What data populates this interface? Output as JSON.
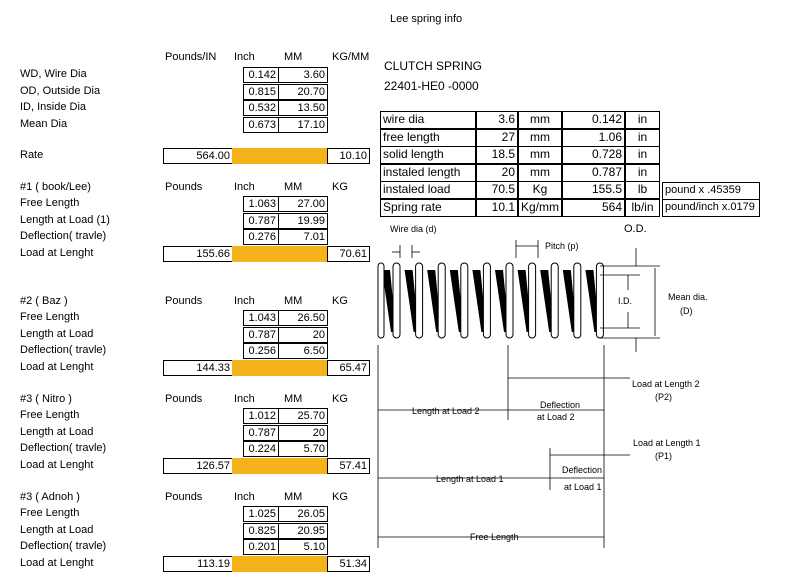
{
  "title": "Lee spring info",
  "dimensions": {
    "headers": [
      "Pounds/IN",
      "Inch",
      "MM",
      "KG/MM"
    ],
    "rows": [
      {
        "label": "WD, Wire Dia",
        "inch": "0.142",
        "mm": "3.60"
      },
      {
        "label": "OD, Outside Dia",
        "inch": "0.815",
        "mm": "20.70"
      },
      {
        "label": "ID, Inside Dia",
        "inch": "0.532",
        "mm": "13.50"
      },
      {
        "label": "Mean Dia",
        "inch": "0.673",
        "mm": "17.10"
      }
    ],
    "rate": {
      "label": "Rate",
      "pounds": "564.00",
      "kg": "10.10"
    }
  },
  "sections": [
    {
      "title": "#1 ( book/Lee)",
      "headers": [
        "Pounds",
        "Inch",
        "MM",
        "KG"
      ],
      "rows": [
        {
          "label": "Free Length",
          "inch": "1.063",
          "mm": "27.00"
        },
        {
          "label": "Length at Load (1)",
          "inch": "0.787",
          "mm": "19.99"
        },
        {
          "label": "Deflection( travle)",
          "inch": "0.276",
          "mm": "7.01"
        }
      ],
      "load": {
        "label": "Load at Lenght",
        "pounds": "155.66",
        "kg": "70.61"
      }
    },
    {
      "title": "#2   ( Baz )",
      "headers": [
        "Pounds",
        "Inch",
        "MM",
        "KG"
      ],
      "rows": [
        {
          "label": "Free Length",
          "inch": "1.043",
          "mm": "26.50"
        },
        {
          "label": "Length at Load",
          "inch": "0.787",
          "mm": "20"
        },
        {
          "label": "Deflection( travle)",
          "inch": "0.256",
          "mm": "6.50"
        }
      ],
      "load": {
        "label": "Load at Lenght",
        "pounds": "144.33",
        "kg": "65.47"
      }
    },
    {
      "title": "#3 ( Nitro )",
      "headers": [
        "Pounds",
        "Inch",
        "MM",
        "KG"
      ],
      "rows": [
        {
          "label": "Free Length",
          "inch": "1.012",
          "mm": "25.70"
        },
        {
          "label": "Length at Load",
          "inch": "0.787",
          "mm": "20"
        },
        {
          "label": "Deflection( travle)",
          "inch": "0.224",
          "mm": "5.70"
        }
      ],
      "load": {
        "label": "Load at Lenght",
        "pounds": "126.57",
        "kg": "57.41"
      }
    },
    {
      "title": "#3 ( Adnoh )",
      "headers": [
        "Pounds",
        "Inch",
        "MM",
        "KG"
      ],
      "rows": [
        {
          "label": "Free Length",
          "inch": "1.025",
          "mm": "26.05"
        },
        {
          "label": "Length at Load",
          "inch": "0.825",
          "mm": "20.95"
        },
        {
          "label": "Deflection( travle)",
          "inch": "0.201",
          "mm": "5.10"
        }
      ],
      "load": {
        "label": "Load at Lenght",
        "pounds": "113.19",
        "kg": "51.34"
      }
    }
  ],
  "spec": {
    "title": "CLUTCH SPRING",
    "part": "22401-HE0 -0000",
    "rows": [
      [
        "wire dia",
        "3.6",
        "mm",
        "0.142",
        "in"
      ],
      [
        "free length",
        "27",
        "mm",
        "1.06",
        "in"
      ],
      [
        "solid length",
        "18.5",
        "mm",
        "0.728",
        "in"
      ],
      [
        "instaled length",
        "20",
        "mm",
        "0.787",
        "in"
      ],
      [
        "instaled load",
        "70.5",
        "Kg",
        "155.5",
        "lb"
      ],
      [
        "Spring rate",
        "10.1",
        "Kg/mm",
        "564",
        "lb/in"
      ]
    ]
  },
  "notes": [
    "pound  x .45359",
    "pound/inch x.0179"
  ],
  "diagram": {
    "wire_dia": "Wire dia (d)",
    "pitch": "Pitch (p)",
    "od": "O.D.",
    "id": "I.D.",
    "mean_dia": [
      "Mean dia.",
      "(D)"
    ],
    "load2": [
      "Load at Length 2",
      "(P2)"
    ],
    "length_load2": "Length at Load 2",
    "deflection2": [
      "Deflection",
      "at Load 2"
    ],
    "load1": [
      "Load at Length 1",
      "(P1)"
    ],
    "deflection1": [
      "Deflection",
      "at Load 1"
    ],
    "length_load1": "Length at Load 1",
    "free_length": "Free Length"
  }
}
